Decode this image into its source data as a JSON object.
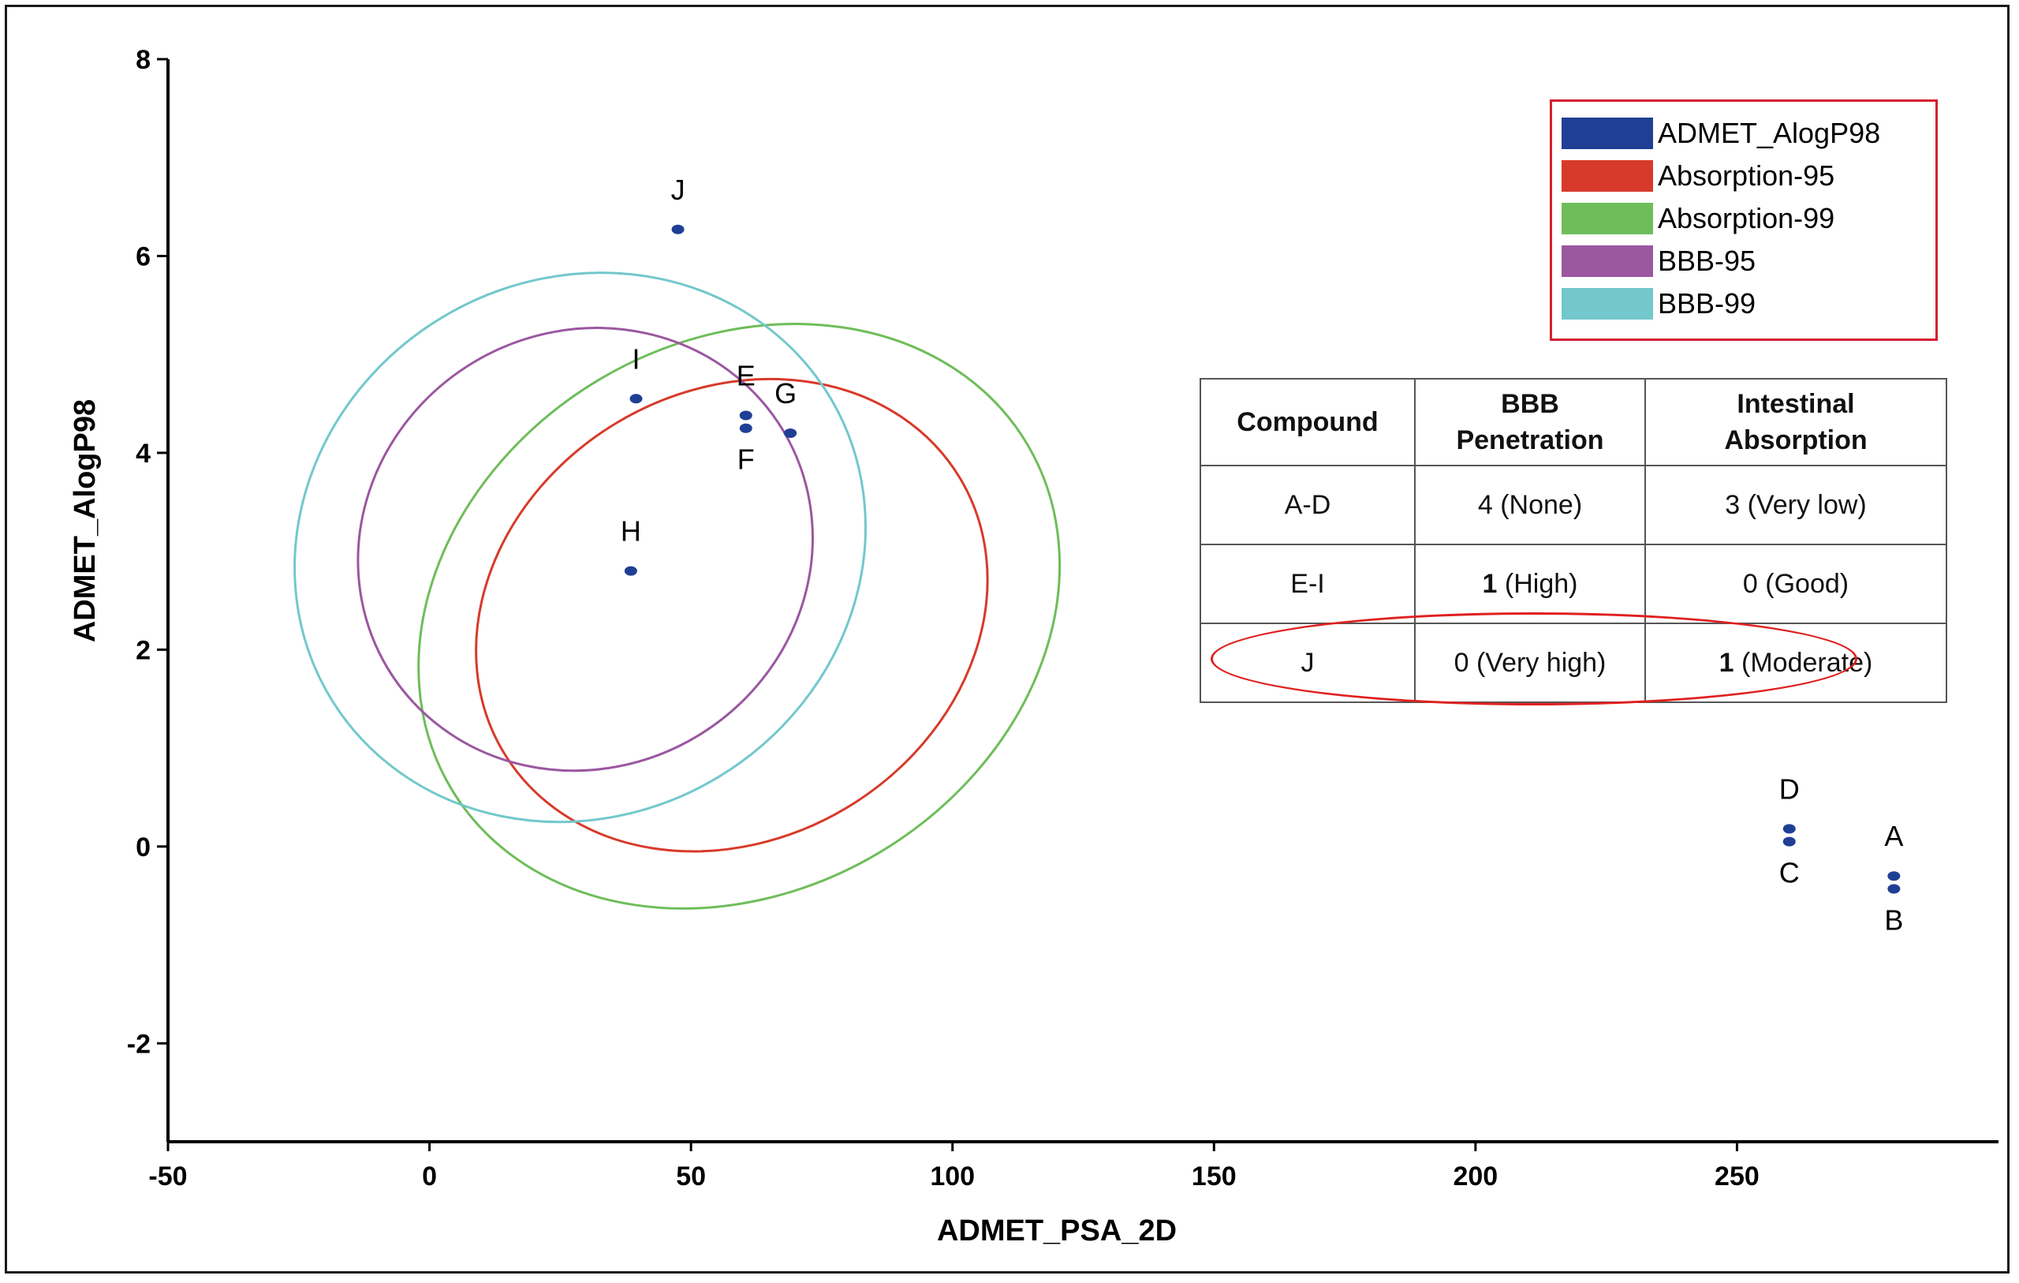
{
  "chart_data": {
    "type": "scatter",
    "xlabel": "ADMET_PSA_2D",
    "ylabel": "ADMET_AlogP98",
    "xlim": [
      -50,
      300
    ],
    "ylim": [
      -3,
      8
    ],
    "x_ticks": [
      -50,
      0,
      50,
      100,
      150,
      200,
      250
    ],
    "y_ticks": [
      -2,
      0,
      2,
      4,
      6,
      8
    ],
    "series": [
      {
        "name": "ADMET_AlogP98",
        "color": "#1f3f94",
        "points": [
          {
            "label": "A",
            "x": 280,
            "y": -0.3
          },
          {
            "label": "B",
            "x": 280,
            "y": -0.43
          },
          {
            "label": "C",
            "x": 260,
            "y": 0.05
          },
          {
            "label": "D",
            "x": 260,
            "y": 0.18
          },
          {
            "label": "E",
            "x": 60.5,
            "y": 4.38
          },
          {
            "label": "F",
            "x": 60.5,
            "y": 4.25
          },
          {
            "label": "G",
            "x": 69,
            "y": 4.2
          },
          {
            "label": "H",
            "x": 38.5,
            "y": 2.8
          },
          {
            "label": "I",
            "x": 39.5,
            "y": 4.55
          },
          {
            "label": "J",
            "x": 47.5,
            "y": 6.27
          }
        ]
      }
    ],
    "ellipses": [
      {
        "name": "Absorption-95",
        "color": "#d73a2a",
        "cx": 57.8,
        "cy": 2.35,
        "width": 130.5,
        "height": 7.35
      },
      {
        "name": "Absorption-99",
        "color": "#6ebd5a",
        "cx": 59.2,
        "cy": 2.34,
        "width": 164.5,
        "height": 9.01
      },
      {
        "name": "BBB-95",
        "color": "#9b57a0",
        "cx": 29.8,
        "cy": 3.02,
        "width": 113.1,
        "height": 7.14
      },
      {
        "name": "BBB-99",
        "color": "#72c8cc",
        "cx": 28.8,
        "cy": 3.04,
        "width": 142.9,
        "height": 8.79
      }
    ],
    "point_label_positions": {
      "A": "above",
      "B": "below",
      "C": "below",
      "D": "above",
      "E": "above",
      "F": "below",
      "G": "above-right",
      "H": "above",
      "I": "above",
      "J": "above"
    }
  },
  "legend": {
    "items": [
      {
        "label": "ADMET_AlogP98",
        "color": "#1f3f94"
      },
      {
        "label": "Absorption-95",
        "color": "#d73a2a"
      },
      {
        "label": "Absorption-99",
        "color": "#6ebd5a"
      },
      {
        "label": "BBB-95",
        "color": "#9b57a0"
      },
      {
        "label": "BBB-99",
        "color": "#72c8cc"
      }
    ]
  },
  "table": {
    "headers": [
      "Compound",
      "BBB Penetration",
      "Intestinal Absorption"
    ],
    "rows": [
      {
        "compound": "A-D",
        "bbb_num": "4",
        "bbb_text": " (None)",
        "abs_num": "3",
        "abs_text": " (Very low)"
      },
      {
        "compound": "E-I",
        "bbb_num": "1",
        "bbb_text": " (High)",
        "abs_num": "0",
        "abs_text": " (Good)"
      },
      {
        "compound": "J",
        "bbb_num": "0",
        "bbb_text": " (Very high)",
        "abs_num": "1",
        "abs_text": " (Moderate)"
      }
    ],
    "highlight_color": "#e02020"
  }
}
